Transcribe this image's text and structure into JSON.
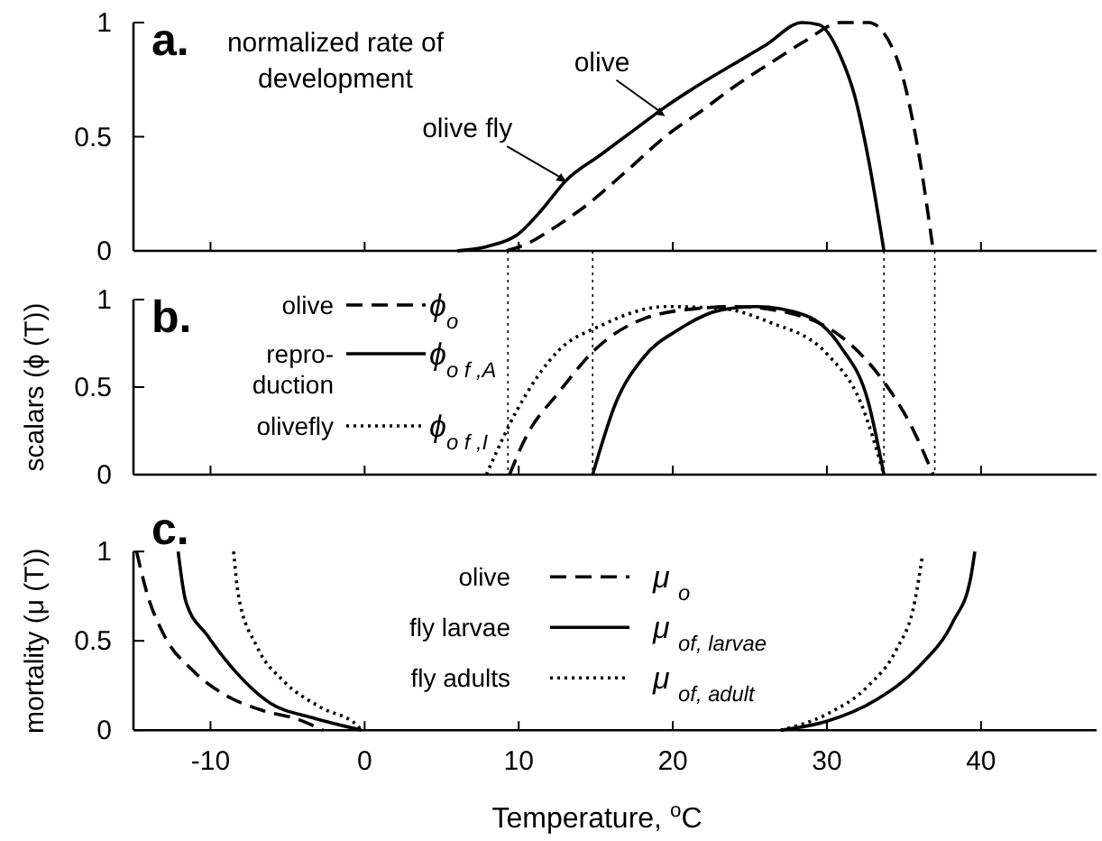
{
  "chart_data": [
    {
      "type": "line",
      "annotations": [
        "a.",
        "normalized rate of\ndevelopment",
        {
          "text": "olive",
          "x": 19.5,
          "y": 0.59
        },
        {
          "text": "olive fly",
          "x": 13.1,
          "y": 0.3
        }
      ],
      "xlim": [
        -15,
        47.5
      ],
      "xticks": [
        {
          "value": -10,
          "label": null
        },
        {
          "value": 0,
          "label": null
        },
        {
          "value": 10,
          "label": null
        },
        {
          "value": 20,
          "label": null
        },
        {
          "value": 30,
          "label": null
        },
        {
          "value": 40,
          "label": null
        }
      ],
      "ylim": [
        0,
        1
      ],
      "yticks": [
        0,
        0.5,
        1
      ],
      "tick_labels": "y",
      "legend": false,
      "series": [
        {
          "color": "#000000",
          "line_style": "dashed",
          "x": [
            9.2,
            10.5,
            12.5,
            14.4,
            17,
            19.5,
            22,
            24,
            26.5,
            28.6,
            30.9,
            32.7,
            34.5,
            35.9,
            36.9
          ],
          "values": [
            0,
            0.03,
            0.11,
            0.2,
            0.35,
            0.5,
            0.62,
            0.72,
            0.83,
            0.92,
            1.0,
            1.0,
            0.85,
            0.45,
            0
          ]
        },
        {
          "color": "#000000",
          "line_style": "solid",
          "x": [
            6.0,
            8.0,
            9.9,
            11.5,
            13.1,
            15.3,
            17.5,
            19.5,
            22,
            24,
            26,
            28.4,
            29.5,
            30.9,
            31.8,
            32.7,
            33.7
          ],
          "values": [
            0,
            0.02,
            0.07,
            0.18,
            0.31,
            0.42,
            0.53,
            0.63,
            0.74,
            0.82,
            0.9,
            1.0,
            0.99,
            0.85,
            0.68,
            0.4,
            0
          ]
        }
      ]
    },
    {
      "type": "line",
      "ylabel": "scalars (ϕ (T))",
      "annotations": [
        "b.",
        "olive",
        "repro-\nduction",
        "olivefly"
      ],
      "xlim": [
        -15,
        47.5
      ],
      "xticks": [
        {
          "value": -10,
          "label": null
        },
        {
          "value": 0,
          "label": null
        },
        {
          "value": 10,
          "label": null
        },
        {
          "value": 20,
          "label": null
        },
        {
          "value": 30,
          "label": null
        },
        {
          "value": 40,
          "label": null
        }
      ],
      "ylim": [
        0,
        1
      ],
      "yticks": [
        0,
        0.5,
        1
      ],
      "tick_labels": "y",
      "legend": "top left",
      "ref_lines": [
        {
          "axis": "x",
          "value": 9.3,
          "color": "#000000",
          "line_style": "dotted"
        },
        {
          "axis": "x",
          "value": 14.8,
          "color": "#000000",
          "line_style": "dotted"
        },
        {
          "axis": "x",
          "value": 33.7,
          "color": "#000000",
          "line_style": "dotted"
        },
        {
          "axis": "x",
          "value": 37.0,
          "color": "#000000",
          "line_style": "dotted"
        }
      ],
      "series": [
        {
          "name": "ϕ$_{o}$",
          "color": "#000000",
          "line_style": "dashed",
          "x": [
            9.4,
            10.5,
            12.6,
            14.9,
            18.1,
            21.7,
            24,
            27.7,
            30.9,
            33.7,
            35.4,
            36.9
          ],
          "values": [
            0,
            0.22,
            0.47,
            0.71,
            0.89,
            0.95,
            0.96,
            0.92,
            0.79,
            0.53,
            0.29,
            0
          ]
        },
        {
          "name": "ϕ$_{o f ,A}$",
          "color": "#000000",
          "line_style": "solid",
          "x": [
            14.8,
            16.3,
            18.1,
            20.4,
            23.1,
            25.4,
            28.6,
            30.9,
            32.7,
            33.7
          ],
          "values": [
            0,
            0.41,
            0.67,
            0.83,
            0.94,
            0.96,
            0.91,
            0.73,
            0.41,
            0
          ]
        },
        {
          "name": "ϕ$_{o f ,I}$",
          "color": "#000000",
          "line_style": "dotted",
          "x": [
            7.9,
            9.9,
            12.6,
            15.3,
            19.5,
            23.1,
            26.3,
            30,
            32.2,
            33.7
          ],
          "values": [
            0,
            0.37,
            0.71,
            0.85,
            0.96,
            0.95,
            0.87,
            0.69,
            0.41,
            0
          ]
        }
      ]
    },
    {
      "type": "line",
      "ylabel": "mortality (μ (T))",
      "xlabel": "Temperature, $^{o}$C",
      "annotations": [
        "c.",
        "olive",
        "fly larvae",
        "fly adults"
      ],
      "xlim": [
        -15,
        47.5
      ],
      "xticks": [
        -10,
        0,
        10,
        20,
        30,
        40
      ],
      "ylim": [
        0,
        1
      ],
      "yticks": [
        0,
        0.5,
        1
      ],
      "legend": "top",
      "series": [
        {
          "name": "μ $_{o}$",
          "color": "#000000",
          "line_style": "dashed",
          "x": [
            -14.8,
            -14.1,
            -13.0,
            -11.1,
            -8.9,
            -6.6,
            -4.3,
            -2.7
          ],
          "values": [
            1,
            0.76,
            0.53,
            0.33,
            0.19,
            0.11,
            0.06,
            0
          ]
        },
        {
          "name": "μ $_{of, larvae}$",
          "color": "#000000",
          "line_style": "solid",
          "x": [
            -12.1,
            -11.6,
            -10.2,
            -8.4,
            -6.1,
            -3.4,
            -0.2,
            13,
            27,
            30,
            33.2,
            35.9,
            38.2,
            39.3,
            39.6
          ],
          "values": [
            1,
            0.72,
            0.53,
            0.33,
            0.15,
            0.07,
            0,
            null,
            0,
            0.05,
            0.17,
            0.35,
            0.61,
            0.84,
            1
          ]
        },
        {
          "name": "μ $_{of, adult}$",
          "color": "#000000",
          "line_style": "dotted",
          "x": [
            -8.5,
            -8.2,
            -7.0,
            -5.2,
            -2.9,
            -0.4,
            -0.2,
            13,
            27,
            30,
            32.7,
            34.5,
            35.7,
            36.2
          ],
          "values": [
            1,
            0.76,
            0.47,
            0.27,
            0.13,
            0.02,
            0,
            null,
            0,
            0.09,
            0.25,
            0.45,
            0.72,
            0.98
          ]
        }
      ]
    }
  ]
}
